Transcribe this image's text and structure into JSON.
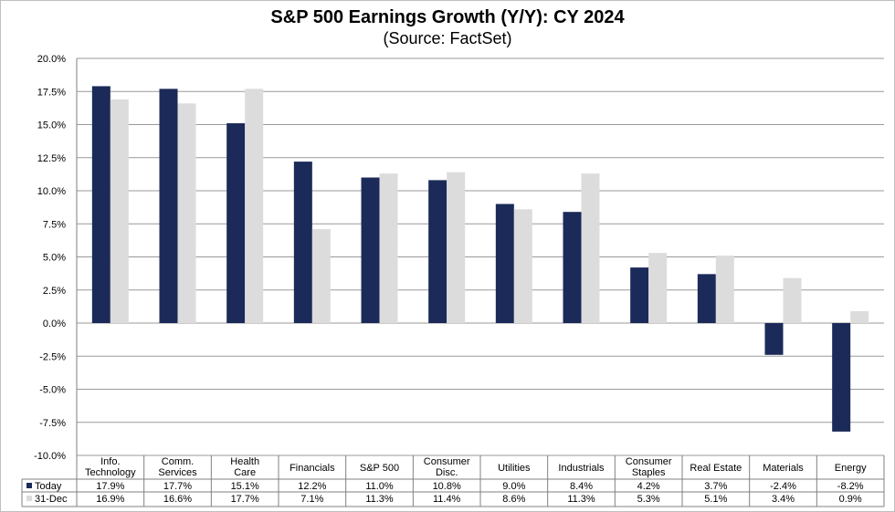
{
  "chart_data": {
    "type": "bar",
    "title": "S&P 500 Earnings Growth (Y/Y): CY 2024",
    "subtitle": "(Source: FactSet)",
    "categories": [
      [
        "Info.",
        "Technology"
      ],
      [
        "Comm.",
        "Services"
      ],
      [
        "Health",
        "Care"
      ],
      [
        "Financials"
      ],
      [
        "S&P 500"
      ],
      [
        "Consumer",
        "Disc."
      ],
      [
        "Utilities"
      ],
      [
        "Industrials"
      ],
      [
        "Consumer",
        "Staples"
      ],
      [
        "Real Estate"
      ],
      [
        "Materials"
      ],
      [
        "Energy"
      ]
    ],
    "series": [
      {
        "name": "Today",
        "color": "#1b2a58",
        "values": [
          17.9,
          17.7,
          15.1,
          12.2,
          11.0,
          10.8,
          9.0,
          8.4,
          4.2,
          3.7,
          -2.4,
          -8.2
        ],
        "labels": [
          "17.9%",
          "17.7%",
          "15.1%",
          "12.2%",
          "11.0%",
          "10.8%",
          "9.0%",
          "8.4%",
          "4.2%",
          "3.7%",
          "-2.4%",
          "-8.2%"
        ]
      },
      {
        "name": "31-Dec",
        "color": "#dcdcdc",
        "values": [
          16.9,
          16.6,
          17.7,
          7.1,
          11.3,
          11.4,
          8.6,
          11.3,
          5.3,
          5.1,
          3.4,
          0.9
        ],
        "labels": [
          "16.9%",
          "16.6%",
          "17.7%",
          "7.1%",
          "11.3%",
          "11.4%",
          "8.6%",
          "11.3%",
          "5.3%",
          "5.1%",
          "3.4%",
          "0.9%"
        ]
      }
    ],
    "ylim": [
      -10,
      20
    ],
    "yticks": [
      20,
      17.5,
      15,
      12.5,
      10,
      7.5,
      5,
      2.5,
      0,
      -2.5,
      -5,
      -7.5,
      -10
    ],
    "ytick_labels": [
      "20.0%",
      "17.5%",
      "15.0%",
      "12.5%",
      "10.0%",
      "7.5%",
      "5.0%",
      "2.5%",
      "0.0%",
      "-2.5%",
      "-5.0%",
      "-7.5%",
      "-10.0%"
    ],
    "grid": true,
    "legend": "data-table"
  }
}
